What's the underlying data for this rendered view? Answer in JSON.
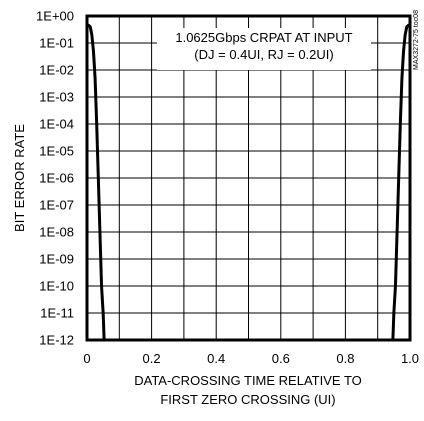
{
  "chart_data": {
    "type": "line",
    "title": "",
    "annotation": [
      "1.0625Gbps CRPAT AT INPUT",
      "(DJ = 0.4UI, RJ = 0.2UI)"
    ],
    "xlabel": [
      "DATA-CROSSING TIME RELATIVE TO",
      "FIRST ZERO CROSSING (UI)"
    ],
    "ylabel": "BIT ERROR RATE",
    "figure_id": "MAX3272-75 toc08",
    "xlim": [
      0,
      1.0
    ],
    "ylim_log10": [
      -12,
      0
    ],
    "yscale": "log",
    "grid": true,
    "legend": "none",
    "x_tick_labels": [
      "0",
      "0.2",
      "0.4",
      "0.6",
      "0.8",
      "1.0"
    ],
    "y_tick_labels": [
      "1E+00",
      "1E-01",
      "1E-02",
      "1E-03",
      "1E-04",
      "1E-05",
      "1E-06",
      "1E-07",
      "1E-08",
      "1E-09",
      "1E-10",
      "1E-11",
      "1E-12"
    ],
    "series": [
      {
        "x": [
          0.0,
          0.005,
          0.01,
          0.015,
          0.02,
          0.025,
          0.03,
          0.035,
          0.04,
          0.045,
          0.05,
          0.053
        ],
        "y": [
          0.4,
          0.45,
          0.4,
          0.2,
          0.05,
          0.005,
          0.0001,
          1e-06,
          1e-08,
          1e-10,
          1e-11,
          1e-12
        ]
      },
      {
        "x": [
          0.947,
          0.95,
          0.955,
          0.96,
          0.965,
          0.97,
          0.975,
          0.98,
          0.985,
          0.99,
          0.995,
          1.0
        ],
        "y": [
          1e-12,
          1e-11,
          1e-10,
          1e-08,
          1e-06,
          0.0001,
          0.005,
          0.05,
          0.2,
          0.4,
          0.45,
          0.4
        ]
      }
    ],
    "colors": {
      "line": "#000000",
      "grid": "#000000",
      "frame": "#000000"
    }
  }
}
